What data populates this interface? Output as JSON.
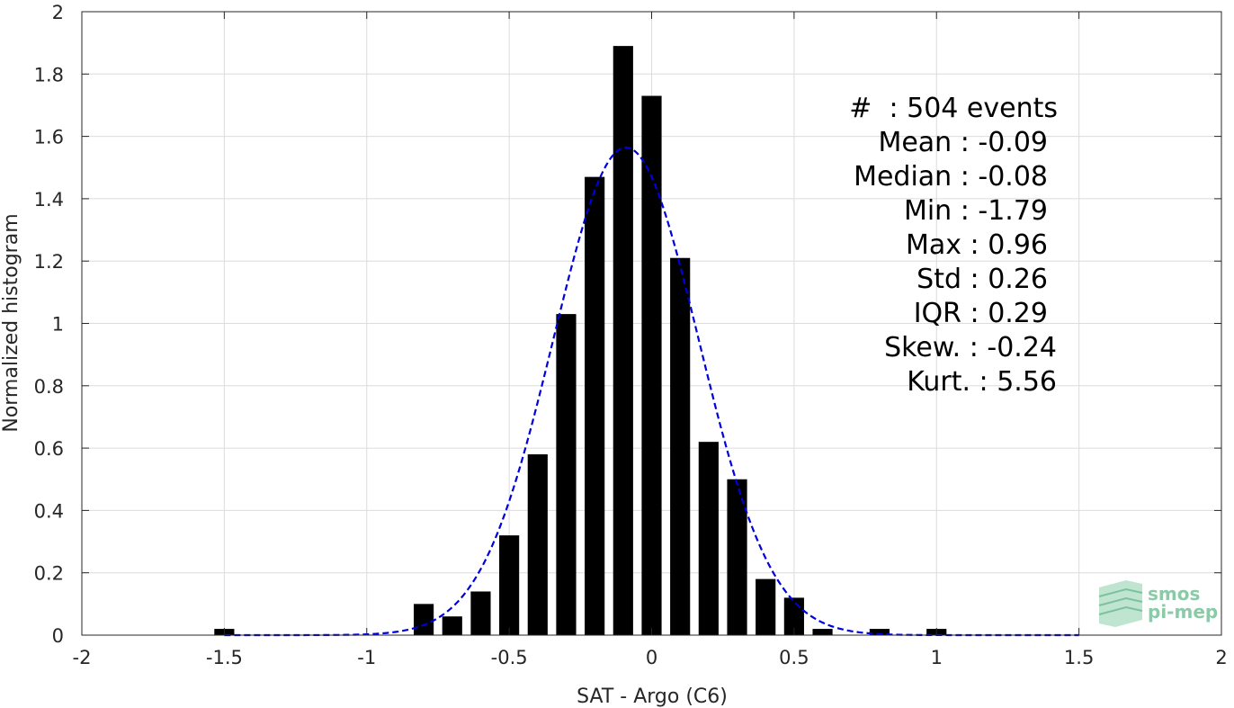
{
  "chart_data": {
    "type": "bar",
    "xlabel": "SAT - Argo (C6)",
    "ylabel": "Normalized histogram",
    "xlim": [
      -2,
      2
    ],
    "ylim": [
      0,
      2
    ],
    "grid": true,
    "x_ticks": [
      "-2",
      "-1.5",
      "-1",
      "-0.5",
      "0",
      "0.5",
      "1",
      "1.5",
      "2"
    ],
    "y_ticks": [
      "0",
      "0.2",
      "0.4",
      "0.6",
      "0.8",
      "1",
      "1.2",
      "1.4",
      "1.6",
      "1.8",
      "2"
    ],
    "bar_color": "#000000",
    "bar_width": 0.07,
    "bars": [
      {
        "x": -1.5,
        "y": 0.02
      },
      {
        "x": -0.8,
        "y": 0.1
      },
      {
        "x": -0.7,
        "y": 0.06
      },
      {
        "x": -0.6,
        "y": 0.14
      },
      {
        "x": -0.5,
        "y": 0.32
      },
      {
        "x": -0.4,
        "y": 0.58
      },
      {
        "x": -0.3,
        "y": 1.03
      },
      {
        "x": -0.2,
        "y": 1.47
      },
      {
        "x": -0.1,
        "y": 1.89
      },
      {
        "x": 0.0,
        "y": 1.73
      },
      {
        "x": 0.1,
        "y": 1.21
      },
      {
        "x": 0.2,
        "y": 0.62
      },
      {
        "x": 0.3,
        "y": 0.5
      },
      {
        "x": 0.4,
        "y": 0.18
      },
      {
        "x": 0.5,
        "y": 0.12
      },
      {
        "x": 0.6,
        "y": 0.02
      },
      {
        "x": 0.8,
        "y": 0.02
      },
      {
        "x": 1.0,
        "y": 0.02
      }
    ],
    "fit_curve": {
      "type": "gaussian",
      "mean": -0.09,
      "std": 0.255,
      "x_range": [
        -1.5,
        1.5
      ],
      "color": "#0000dd",
      "style": "dashed"
    },
    "annotation_lines": [
      "#  : 504 events",
      "Mean : -0.09",
      "Median : -0.08",
      "Min : -1.79",
      "Max : 0.96",
      "Std : 0.26",
      "IQR : 0.29",
      "Skew. : -0.24",
      "Kurt. : 5.56"
    ]
  },
  "logo": {
    "line1": "smos",
    "line2": "pi-mep",
    "color": "#8cc9a8"
  }
}
